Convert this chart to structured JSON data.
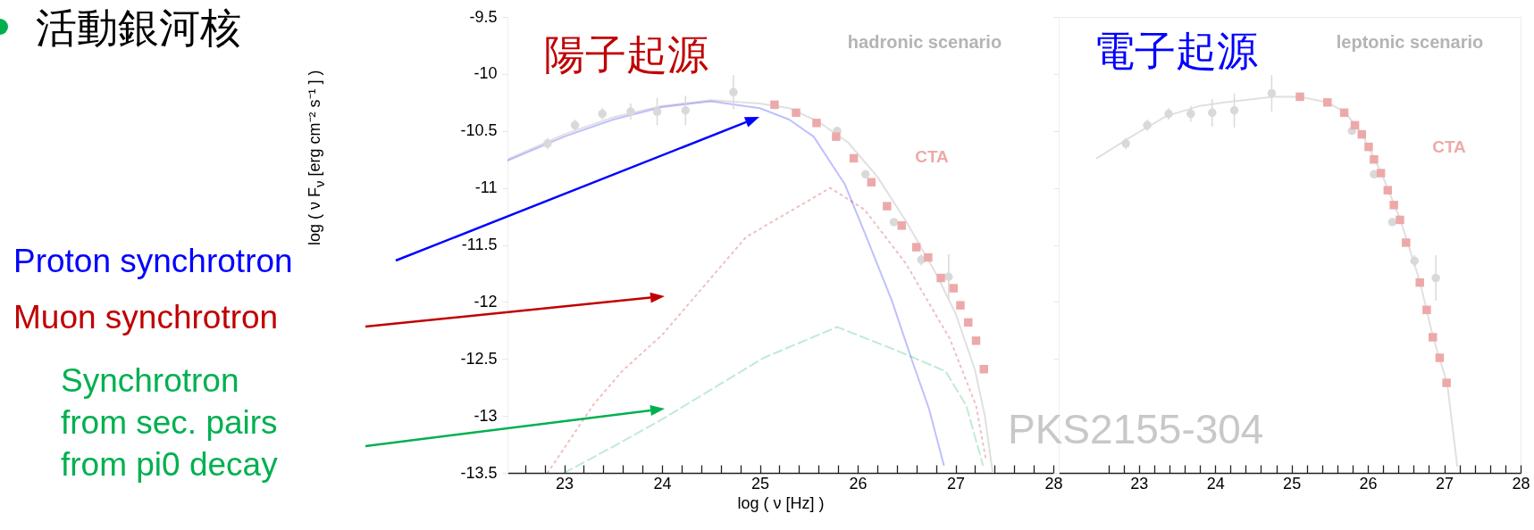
{
  "chart_data": [
    {
      "type": "line",
      "title": "陽子起源",
      "xlabel": "log ( ν [Hz] )",
      "ylabel": "log ( ν F$_{ν}$ [erg cm⁻² s⁻¹ ] )",
      "annotations": [
        "活動銀河核",
        "hadronic scenario",
        "PKS2155-304"
      ],
      "xlim": [
        22.42,
        28
      ],
      "ylim": [
        -13.5,
        -9.5
      ],
      "xticks": [
        {
          "value": 22.6,
          "label": null
        },
        {
          "value": 22.8,
          "label": null
        },
        23,
        {
          "value": 23.2,
          "label": null
        },
        {
          "value": 23.4,
          "label": null
        },
        {
          "value": 23.6,
          "label": null
        },
        {
          "value": 23.8,
          "label": null
        },
        24,
        {
          "value": 24.2,
          "label": null
        },
        {
          "value": 24.4,
          "label": null
        },
        {
          "value": 24.6,
          "label": null
        },
        {
          "value": 24.8,
          "label": null
        },
        25,
        {
          "value": 25.2,
          "label": null
        },
        {
          "value": 25.4,
          "label": null
        },
        {
          "value": 25.6,
          "label": null
        },
        {
          "value": 25.8,
          "label": null
        },
        26,
        {
          "value": 26.2,
          "label": null
        },
        {
          "value": 26.4,
          "label": null
        },
        {
          "value": 26.6,
          "label": null
        },
        {
          "value": 26.8,
          "label": null
        },
        27,
        {
          "value": 27.2,
          "label": null
        },
        {
          "value": 27.4,
          "label": null
        },
        {
          "value": 27.6,
          "label": null
        },
        {
          "value": 27.8,
          "label": null
        },
        28
      ],
      "yticks": [
        -13.5,
        -13,
        -12.5,
        -12,
        -11.5,
        -11,
        -10.5,
        -10,
        -9.5
      ],
      "series": [
        {
          "type": "scatter",
          "marker": "circle",
          "color": "#d9d9d9",
          "x": [
            22.83,
            23.11,
            23.39,
            23.68,
            23.95,
            24.24,
            24.73,
            25.79,
            26.08,
            26.37,
            26.65,
            26.93
          ],
          "values": [
            -10.61,
            -10.45,
            -10.35,
            -10.33,
            -10.33,
            -10.32,
            -10.16,
            -10.5,
            -10.88,
            -11.3,
            -11.63,
            -11.78
          ],
          "errors": [
            0.05,
            0.05,
            0.05,
            0.07,
            0.12,
            0.13,
            0.15,
            null,
            null,
            null,
            0.05,
            0.2
          ]
        },
        {
          "name": "CTA",
          "type": "scatter",
          "marker": "square",
          "color": "#eda9a9",
          "x": [
            25.15,
            25.37,
            25.58,
            25.78,
            25.96,
            26.14,
            26.3,
            26.45,
            26.6,
            26.72,
            26.85,
            26.98,
            27.05,
            27.13,
            27.21,
            27.29
          ],
          "values": [
            -10.27,
            -10.34,
            -10.43,
            -10.55,
            -10.74,
            -10.95,
            -11.16,
            -11.33,
            -11.52,
            -11.61,
            -11.79,
            -11.88,
            -12.03,
            -12.18,
            -12.34,
            -12.59
          ]
        },
        {
          "type": "line",
          "line_style": "solid",
          "color": "#e0e0e0",
          "x": [
            22.42,
            23,
            23.5,
            24,
            24.5,
            25,
            25.3,
            25.6,
            25.9,
            26.2,
            26.5,
            26.8,
            27,
            27.2,
            27.3,
            27.38
          ],
          "values": [
            -10.75,
            -10.53,
            -10.38,
            -10.28,
            -10.23,
            -10.26,
            -10.3,
            -10.42,
            -10.6,
            -10.9,
            -11.3,
            -11.75,
            -12.1,
            -12.6,
            -13,
            -13.5
          ]
        },
        {
          "name": "Proton synchrotron",
          "type": "line",
          "line_style": "solid",
          "color": "#0000ff",
          "x": [
            22.42,
            23,
            23.5,
            24,
            24.5,
            25,
            25.3,
            25.55,
            25.87,
            26.07,
            26.35,
            26.55,
            26.73,
            26.88
          ],
          "values": [
            -10.76,
            -10.55,
            -10.4,
            -10.29,
            -10.24,
            -10.3,
            -10.4,
            -10.55,
            -10.97,
            -11.39,
            -11.99,
            -12.5,
            -12.94,
            -13.43
          ]
        },
        {
          "name": "Muon synchrotron",
          "type": "line",
          "line_style": "dotted",
          "color": "#c00000",
          "x": [
            22.83,
            23.3,
            23.6,
            24,
            24.86,
            25.72,
            26.07,
            26.49,
            26.94,
            27.21,
            27.31
          ],
          "values": [
            -13.5,
            -12.9,
            -12.6,
            -12.29,
            -11.43,
            -11,
            -11.19,
            -11.66,
            -12.32,
            -12.91,
            -13.38
          ]
        },
        {
          "name": "Synchrotron\nfrom sec. pairs\nfrom pi0 decay",
          "type": "line",
          "line_style": "dashed",
          "color": "#00b050",
          "x": [
            23,
            23.5,
            24,
            25.04,
            25.79,
            26.41,
            26.9,
            27.11,
            27.28
          ],
          "values": [
            -13.5,
            -13.27,
            -13.03,
            -12.49,
            -12.22,
            -12.43,
            -12.61,
            -12.91,
            -13.43
          ]
        }
      ]
    },
    {
      "type": "line",
      "title": "電子起源",
      "annotations": [
        "leptonic scenario"
      ],
      "tick_labels": "x",
      "xlim": [
        21.95,
        28
      ],
      "ylim": [
        -13.5,
        -9.5
      ],
      "xticks": [
        {
          "value": 22.6,
          "label": null
        },
        {
          "value": 22.8,
          "label": null
        },
        23,
        {
          "value": 23.2,
          "label": null
        },
        {
          "value": 23.4,
          "label": null
        },
        {
          "value": 23.6,
          "label": null
        },
        {
          "value": 23.8,
          "label": null
        },
        24,
        {
          "value": 24.2,
          "label": null
        },
        {
          "value": 24.4,
          "label": null
        },
        {
          "value": 24.6,
          "label": null
        },
        {
          "value": 24.8,
          "label": null
        },
        25,
        {
          "value": 25.2,
          "label": null
        },
        {
          "value": 25.4,
          "label": null
        },
        {
          "value": 25.6,
          "label": null
        },
        {
          "value": 25.8,
          "label": null
        },
        26,
        {
          "value": 26.2,
          "label": null
        },
        {
          "value": 26.4,
          "label": null
        },
        {
          "value": 26.6,
          "label": null
        },
        {
          "value": 26.8,
          "label": null
        },
        27,
        {
          "value": 27.2,
          "label": null
        },
        {
          "value": 27.4,
          "label": null
        },
        {
          "value": 27.6,
          "label": null
        },
        {
          "value": 27.8,
          "label": null
        },
        28
      ],
      "yticks": [
        -13.5,
        -13,
        -12.5,
        -12,
        -11.5,
        -11,
        -10.5,
        -10,
        -9.5
      ],
      "series": [
        {
          "type": "scatter",
          "marker": "circle",
          "color": "#d9d9d9",
          "x": [
            22.83,
            23.11,
            23.39,
            23.68,
            23.96,
            24.25,
            24.74,
            25.79,
            26.08,
            26.32,
            26.61,
            26.89
          ],
          "values": [
            -10.61,
            -10.45,
            -10.35,
            -10.35,
            -10.34,
            -10.32,
            -10.17,
            -10.5,
            -10.88,
            -11.3,
            -11.64,
            -11.79
          ],
          "errors": [
            0.05,
            0.05,
            0.05,
            0.07,
            0.12,
            0.15,
            0.16,
            null,
            null,
            null,
            0.05,
            0.2
          ]
        },
        {
          "name": "CTA",
          "type": "scatter",
          "marker": "square",
          "color": "#eda9a9",
          "x": [
            25.11,
            25.47,
            25.69,
            25.83,
            25.92,
            26.01,
            26.08,
            26.17,
            26.26,
            26.34,
            26.42,
            26.5,
            26.68,
            26.77,
            26.85,
            26.94,
            27.03
          ],
          "values": [
            -10.2,
            -10.25,
            -10.34,
            -10.45,
            -10.53,
            -10.64,
            -10.75,
            -10.87,
            -11.02,
            -11.15,
            -11.28,
            -11.48,
            -11.83,
            -12.07,
            -12.31,
            -12.49,
            -12.71
          ]
        },
        {
          "type": "line",
          "line_style": "solid",
          "color": "#e0e0e0",
          "x": [
            22.45,
            22.9,
            23.36,
            23.8,
            24.12,
            24.76,
            25.11,
            25.47,
            25.69,
            25.92,
            26.17,
            26.42,
            26.68,
            26.85,
            27.04,
            27.17
          ],
          "values": [
            -10.74,
            -10.55,
            -10.37,
            -10.28,
            -10.25,
            -10.2,
            -10.2,
            -10.25,
            -10.33,
            -10.52,
            -10.86,
            -11.27,
            -11.82,
            -12.3,
            -12.72,
            -13.44
          ]
        }
      ]
    }
  ]
}
